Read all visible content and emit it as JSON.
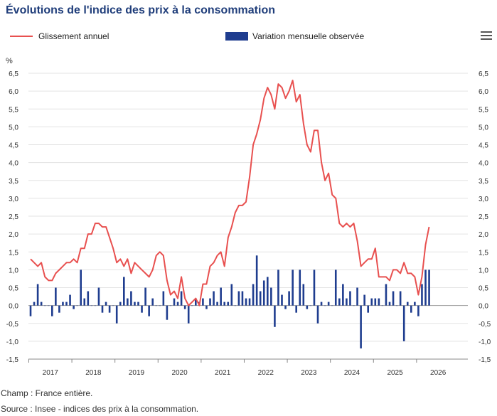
{
  "title": "Évolutions de l'indice des prix à la consommation",
  "legend": {
    "line_label": "Glissement annuel",
    "bar_label": "Variation mensuelle observée"
  },
  "menu_icon": "hamburger-menu-icon",
  "footer": {
    "champ": "Champ : France entière.",
    "source": "Source : Insee - indices des prix à la consommation."
  },
  "chart_data": {
    "type": "bar",
    "unit_label": "%",
    "ylim": [
      -1.5,
      6.5
    ],
    "y_ticks": [
      "6,5",
      "6,0",
      "5,5",
      "5,0",
      "4,5",
      "4,0",
      "3,5",
      "3,0",
      "2,5",
      "2,0",
      "1,5",
      "1,0",
      "0,5",
      "0,0",
      "-0,5",
      "-1,0",
      "-1,5"
    ],
    "x_ticks": [
      "2017",
      "2018",
      "2019",
      "2020",
      "2021",
      "2022",
      "2023",
      "2024",
      "2025",
      "2026"
    ],
    "grid": "horizontal",
    "colors": {
      "line": "#e8504f",
      "bar": "#1f3d8f",
      "grid": "#e3e3e3",
      "zero": "#999999"
    },
    "series": [
      {
        "name": "Glissement annuel",
        "type": "line",
        "values": [
          1.3,
          1.2,
          1.1,
          1.2,
          0.8,
          0.7,
          0.7,
          0.9,
          1.0,
          1.1,
          1.2,
          1.2,
          1.3,
          1.2,
          1.6,
          1.6,
          2.0,
          2.0,
          2.3,
          2.3,
          2.2,
          2.2,
          1.9,
          1.6,
          1.2,
          1.3,
          1.1,
          1.3,
          0.9,
          1.2,
          1.1,
          1.0,
          0.9,
          0.8,
          1.0,
          1.4,
          1.5,
          1.4,
          0.7,
          0.3,
          0.4,
          0.2,
          0.8,
          0.2,
          0.0,
          0.1,
          0.2,
          0.0,
          0.6,
          0.6,
          1.1,
          1.2,
          1.4,
          1.5,
          1.1,
          1.9,
          2.2,
          2.6,
          2.8,
          2.8,
          2.9,
          3.6,
          4.5,
          4.8,
          5.2,
          5.8,
          6.1,
          5.9,
          5.5,
          6.2,
          6.1,
          5.8,
          6.0,
          6.3,
          5.7,
          5.9,
          5.1,
          4.5,
          4.3,
          4.9,
          4.9,
          4.0,
          3.5,
          3.7,
          3.1,
          3.0,
          2.3,
          2.2,
          2.3,
          2.2,
          2.3,
          1.8,
          1.1,
          1.2,
          1.3,
          1.3,
          1.6,
          0.8,
          0.8,
          0.8,
          0.7,
          1.0,
          1.0,
          0.9,
          1.2,
          0.9,
          0.9,
          0.8,
          0.3,
          0.8,
          1.7,
          2.2
        ]
      },
      {
        "name": "Variation mensuelle observée",
        "type": "bar",
        "values": [
          -0.3,
          0.1,
          0.6,
          0.1,
          0.0,
          0.0,
          -0.3,
          0.5,
          -0.2,
          0.1,
          0.1,
          0.3,
          -0.1,
          0.0,
          1.0,
          0.2,
          0.4,
          0.0,
          0.0,
          0.5,
          -0.2,
          0.1,
          -0.2,
          0.0,
          -0.5,
          0.1,
          0.8,
          0.2,
          0.4,
          0.1,
          0.1,
          -0.2,
          0.5,
          -0.3,
          0.2,
          0.0,
          0.0,
          0.4,
          -0.4,
          0.0,
          0.2,
          0.1,
          0.4,
          -0.1,
          -0.5,
          0.0,
          0.2,
          0.1,
          0.2,
          -0.1,
          0.2,
          0.4,
          0.1,
          0.5,
          0.1,
          0.1,
          0.6,
          0.0,
          0.4,
          0.4,
          0.2,
          0.2,
          0.6,
          1.4,
          0.4,
          0.7,
          0.8,
          0.5,
          -0.6,
          1.0,
          0.3,
          -0.1,
          0.4,
          1.0,
          -0.2,
          1.0,
          0.6,
          -0.1,
          0.0,
          1.0,
          -0.5,
          0.1,
          0.0,
          0.1,
          0.0,
          1.0,
          0.2,
          0.6,
          0.2,
          0.4,
          0.0,
          0.5,
          -1.2,
          0.3,
          -0.2,
          0.2,
          0.2,
          0.2,
          0.0,
          0.6,
          0.1,
          0.4,
          0.0,
          0.4,
          -1.0,
          0.1,
          -0.2,
          0.1,
          -0.3,
          0.6,
          1.0,
          1.0
        ]
      }
    ]
  }
}
